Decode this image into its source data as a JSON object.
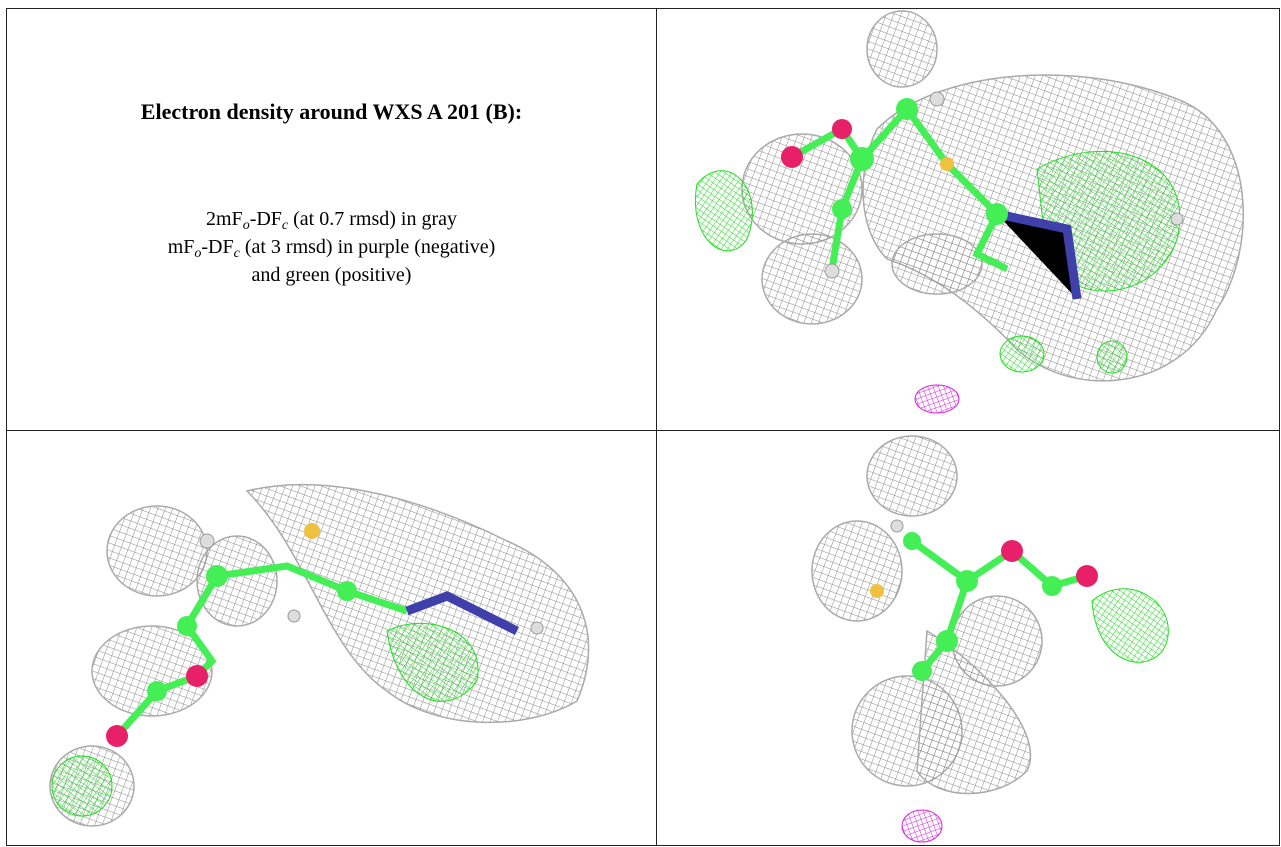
{
  "figure": {
    "title": "Electron density around WXS A 201 (B):",
    "caption_lines": [
      [
        {
          "text": "2mF"
        },
        {
          "text": "o",
          "sub": true
        },
        {
          "text": "-DF"
        },
        {
          "text": "c",
          "sub": true
        },
        {
          "text": " (at 0.7 rmsd) in gray"
        }
      ],
      [
        {
          "text": "mF"
        },
        {
          "text": "o",
          "sub": true
        },
        {
          "text": "-DF"
        },
        {
          "text": "c",
          "sub": true
        },
        {
          "text": " (at 3 rmsd) in purple (negative)"
        }
      ],
      [
        {
          "text": "and green (positive)"
        }
      ]
    ]
  }
}
